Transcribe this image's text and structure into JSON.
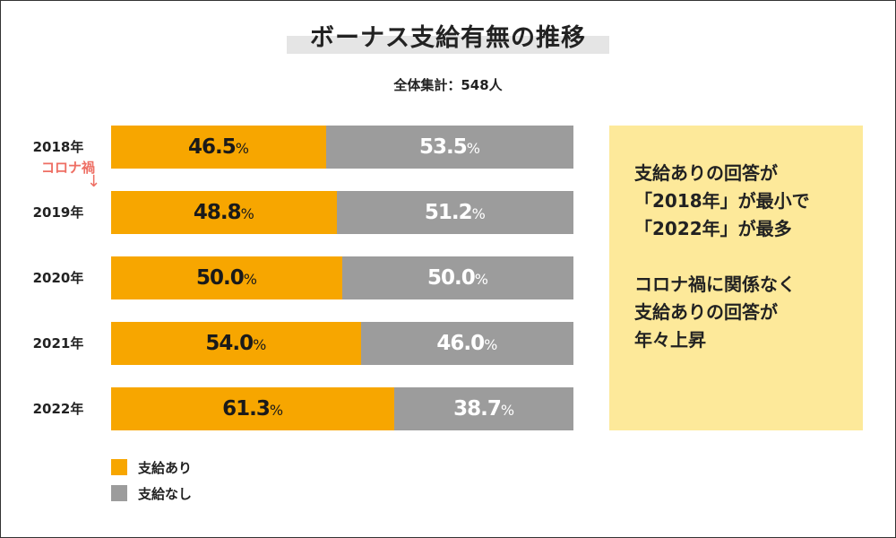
{
  "chart_data": {
    "type": "bar",
    "stacked": true,
    "orientation": "horizontal",
    "title": "ボーナス支給有無の推移",
    "subtitle": "全体集計：548人",
    "categories": [
      "2018年",
      "2019年",
      "2020年",
      "2021年",
      "2022年"
    ],
    "series": [
      {
        "name": "支給あり",
        "values": [
          46.5,
          48.8,
          50.0,
          54.0,
          61.3
        ],
        "color": "#f7a600"
      },
      {
        "name": "支給なし",
        "values": [
          53.5,
          51.2,
          50.0,
          46.0,
          38.7
        ],
        "color": "#9c9c9c"
      }
    ],
    "value_unit": "%",
    "xlim": [
      0,
      100
    ],
    "legend_position": "bottom-left",
    "annotations": {
      "corona_label": "コロナ禍",
      "corona_arrow": "↓"
    }
  },
  "note": {
    "lines": [
      "支給ありの回答が",
      "「2018年」が最小で",
      "「2022年」が最多",
      "",
      "コロナ禍に関係なく",
      "支給ありの回答が",
      "年々上昇"
    ],
    "background": "#fde99a"
  }
}
